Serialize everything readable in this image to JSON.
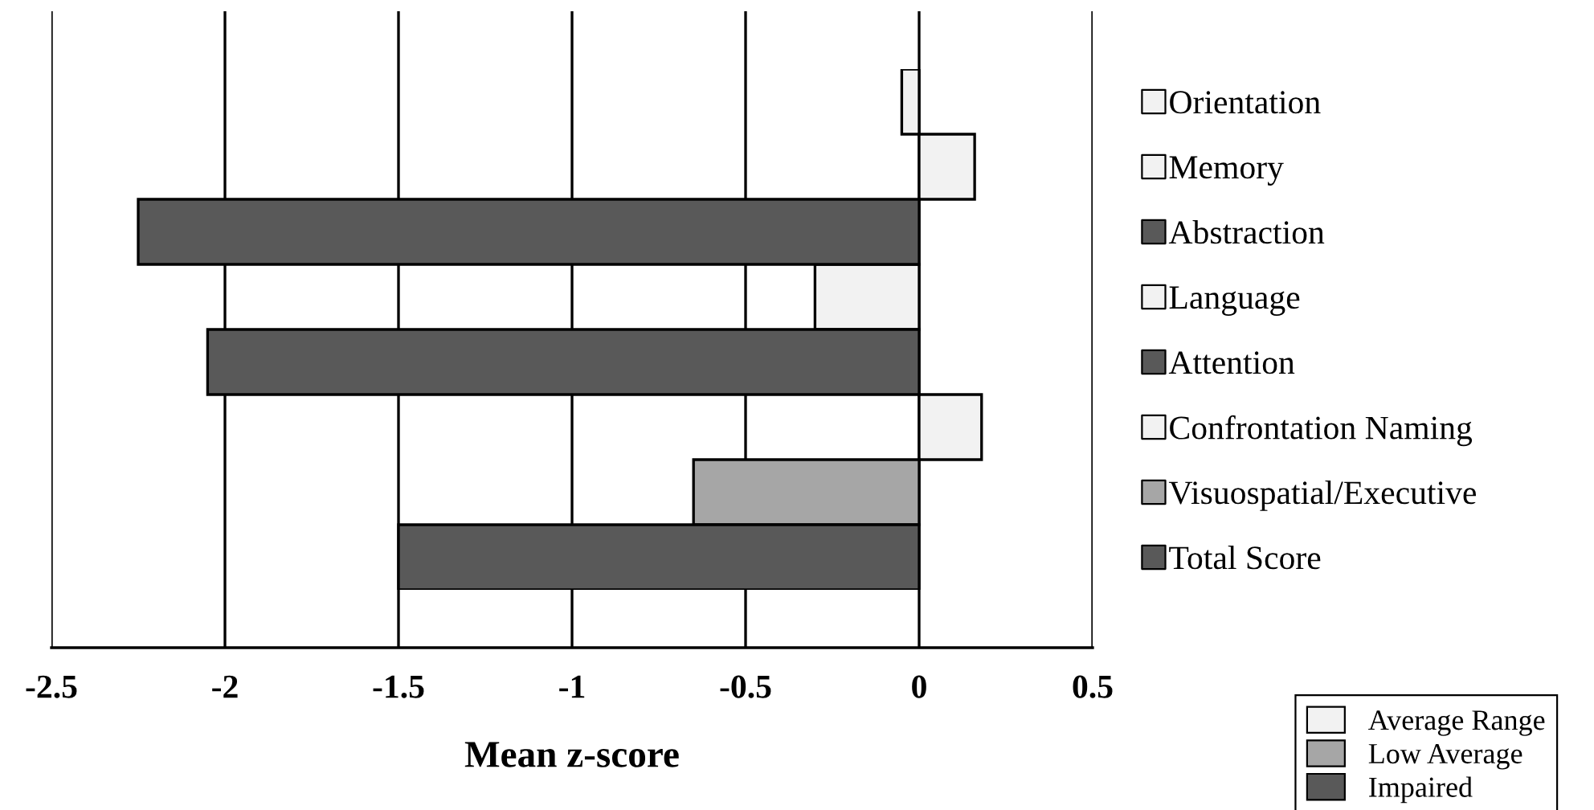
{
  "chart_data": {
    "type": "bar",
    "orientation": "horizontal",
    "stacked": true,
    "xlabel": "Mean z-score",
    "categories": [
      "Orientation",
      "Memory",
      "Abstraction",
      "Language",
      "Attention",
      "Confrontation Naming",
      "Visuospatial/Executive",
      "Total Score"
    ],
    "series": [
      {
        "name": "Average Range",
        "color": "#f2f2f2",
        "values": [
          -0.05,
          0.16,
          null,
          -0.3,
          null,
          0.18,
          null,
          null
        ]
      },
      {
        "name": "Low Average",
        "color": "#a6a6a6",
        "values": [
          null,
          null,
          null,
          null,
          null,
          null,
          -0.65,
          null
        ]
      },
      {
        "name": "Impaired",
        "color": "#595959",
        "values": [
          null,
          null,
          -2.25,
          null,
          -2.05,
          null,
          null,
          -1.5
        ]
      }
    ],
    "xlim": [
      -2.5,
      0.5
    ],
    "xticks": [
      -2.5,
      -2,
      -1.5,
      -1,
      -0.5,
      0,
      0.5
    ],
    "grid": "x",
    "legend": "bottom right"
  }
}
